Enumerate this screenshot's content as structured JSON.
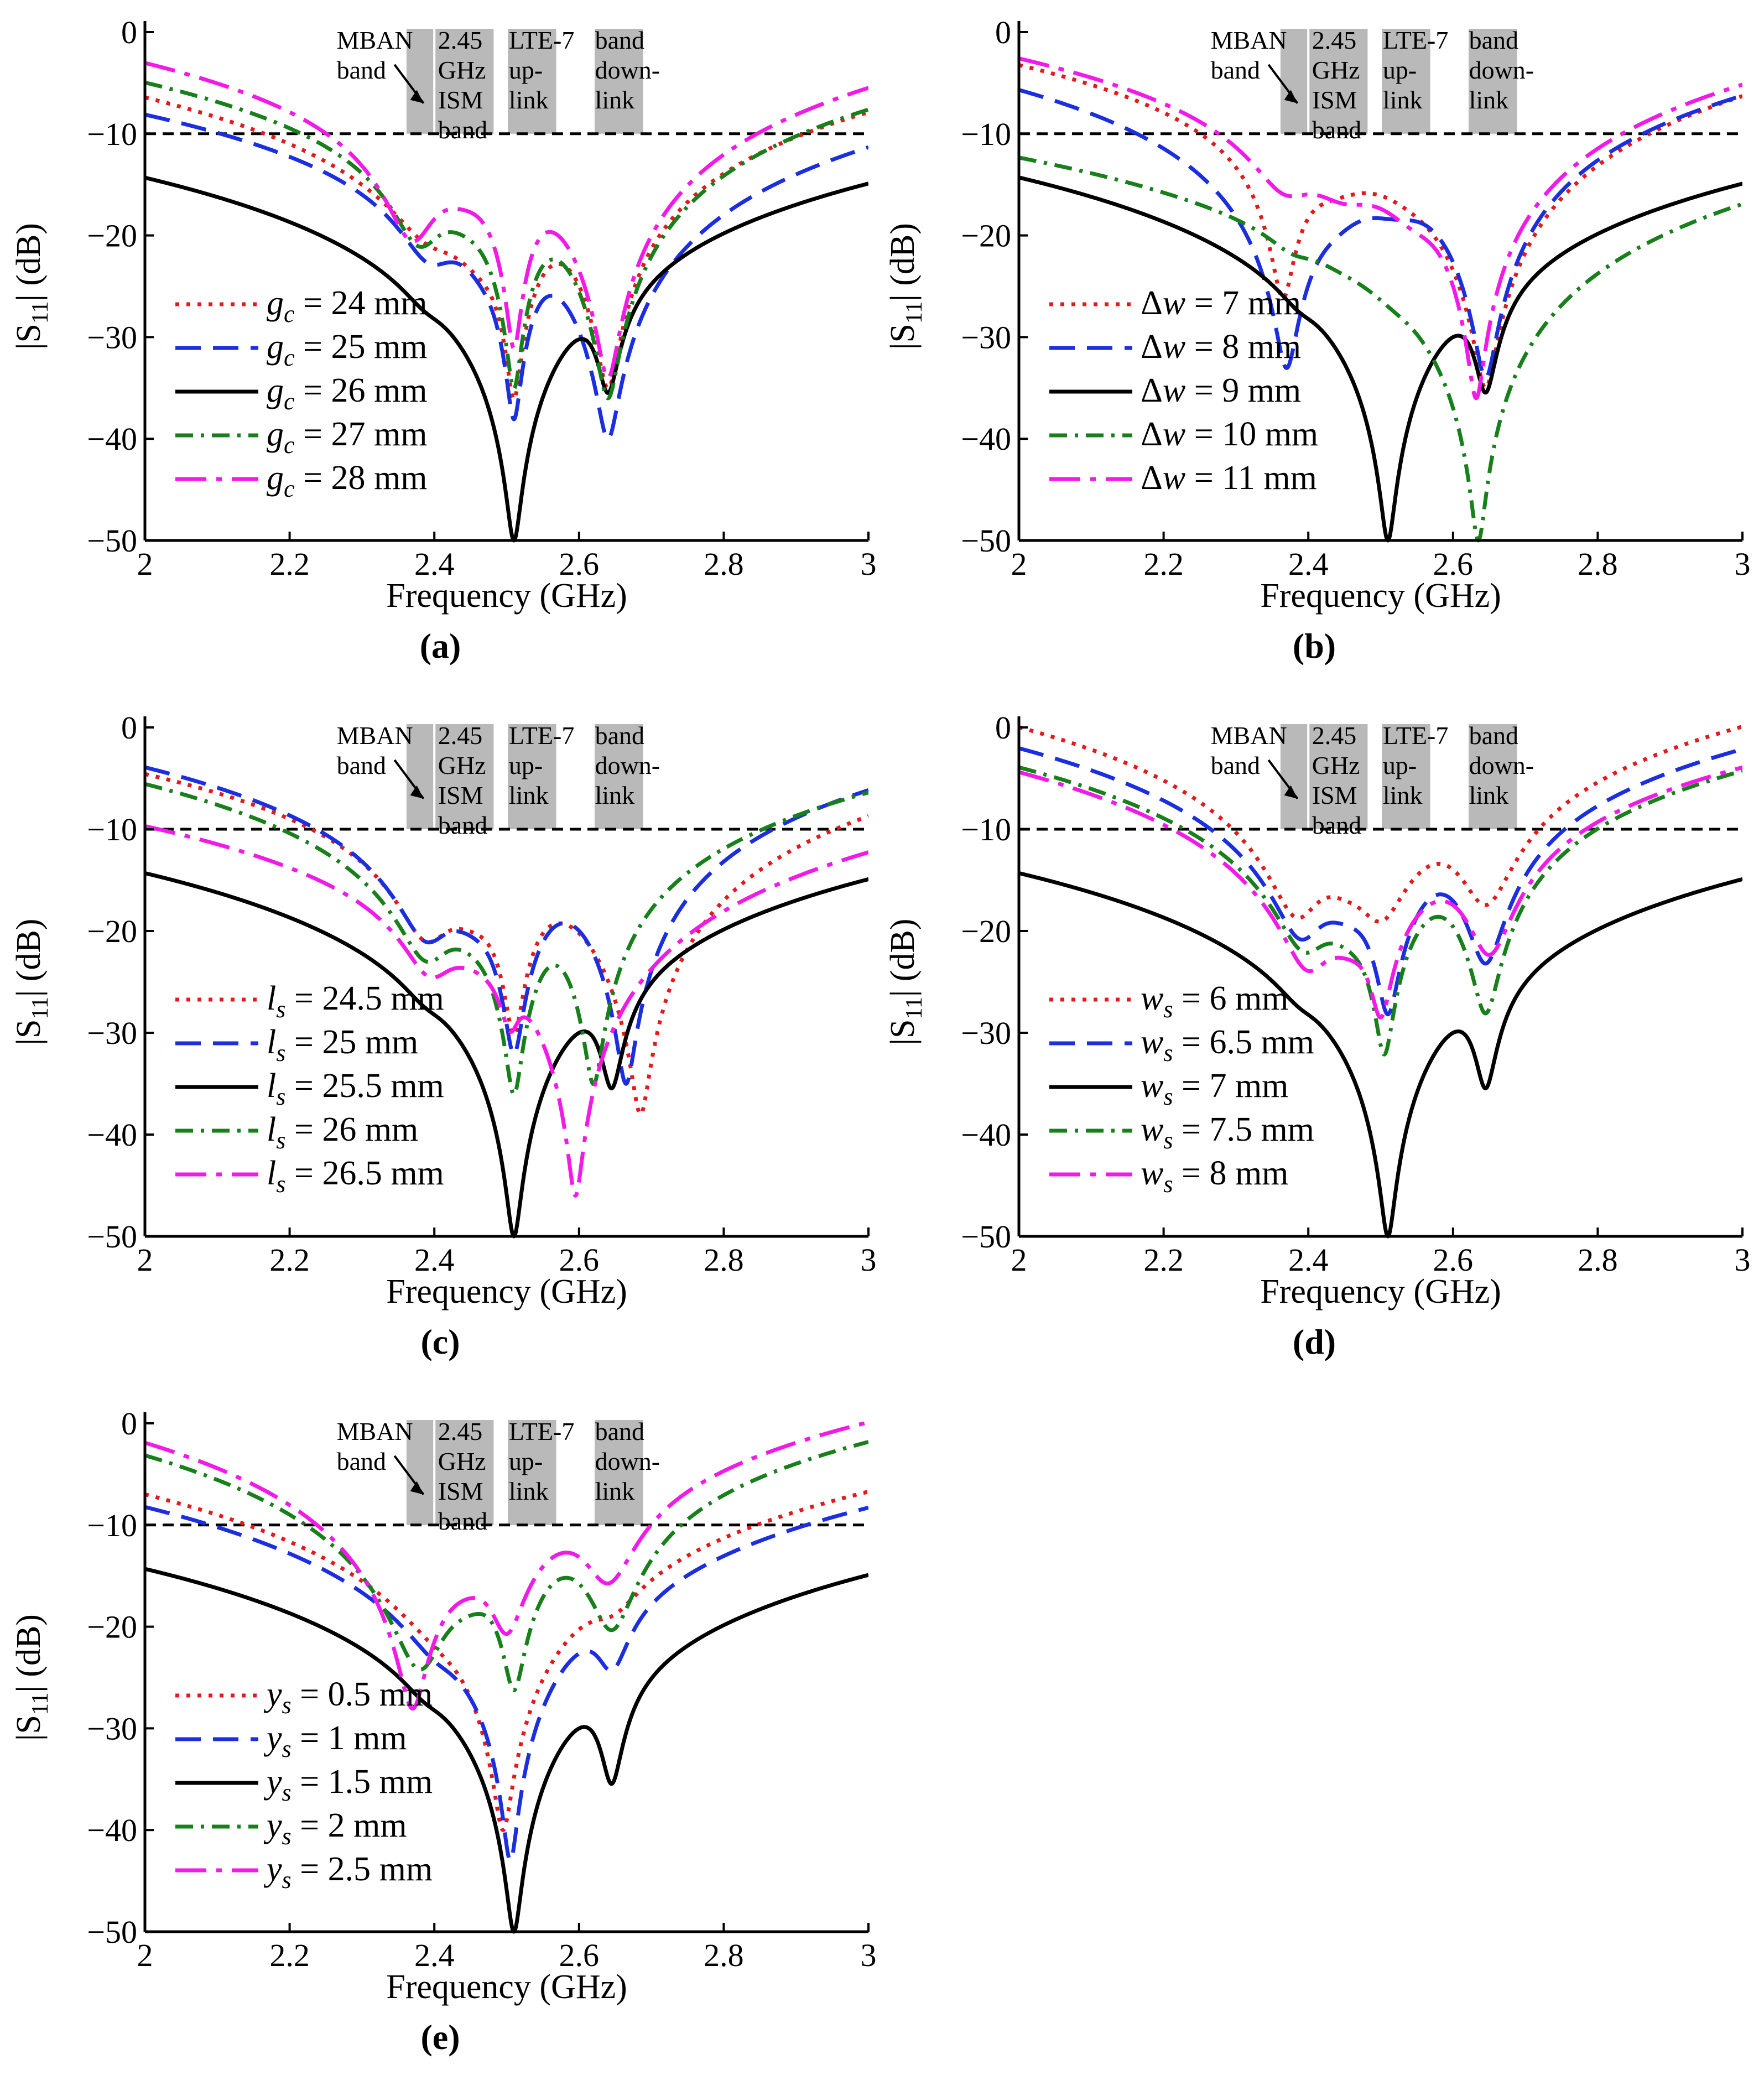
{
  "figure": {
    "y_axis_label": "|S11| (dB)",
    "x_axis_label": "Frequency (GHz)",
    "reference_line_db": -10,
    "series_colors": [
      "#e5191c",
      "#1b2ee0",
      "#000000",
      "#17801a",
      "#f21ae8"
    ],
    "series_styles": [
      "dotted",
      "dashed",
      "solid",
      "dashdot",
      "dashdot-long"
    ]
  },
  "chart_data": [
    {
      "panel": "(a)",
      "type": "line",
      "xlabel": "Frequency (GHz)",
      "ylabel": "|S11| (dB)",
      "xlim": [
        2,
        3
      ],
      "ylim": [
        -50,
        0
      ],
      "xticks": [
        "2",
        "2.2",
        "2.4",
        "2.6",
        "2.8",
        "3"
      ],
      "yticks": [
        "0",
        "−10",
        "−20",
        "−30",
        "−40",
        "−50"
      ],
      "band_labels": [
        "MBAN band",
        "2.45 GHz ISM band",
        "LTE-7 up-link",
        "band down-link"
      ],
      "legend_parameter": "g",
      "legend_subscript": "c",
      "legend_values": [
        "24 mm",
        "25 mm",
        "26 mm",
        "27 mm",
        "28 mm"
      ],
      "series": [
        {
          "name": "g_c = 24 mm",
          "dips": [
            {
              "f": 2.395,
              "d": -18,
              "w": 0.045
            },
            {
              "f": 2.47,
              "d": -21,
              "w": 0.05
            },
            {
              "f": 2.51,
              "d": -36,
              "w": 0.008
            },
            {
              "f": 2.64,
              "d": -35,
              "w": 0.012
            }
          ]
        },
        {
          "name": "g_c = 25 mm",
          "dips": [
            {
              "f": 2.395,
              "d": -21,
              "w": 0.035
            },
            {
              "f": 2.47,
              "d": -18,
              "w": 0.035
            },
            {
              "f": 2.51,
              "d": -38,
              "w": 0.008
            },
            {
              "f": 2.64,
              "d": -40,
              "w": 0.012
            }
          ]
        },
        {
          "name": "g_c = 26 mm",
          "dips": [
            {
              "f": 2.39,
              "d": -21,
              "w": 0.032
            },
            {
              "f": 2.455,
              "d": -16,
              "w": 0.045
            },
            {
              "f": 2.51,
              "d": -50,
              "w": 0.008
            },
            {
              "f": 2.64,
              "d": -35,
              "w": 0.012
            }
          ]
        },
        {
          "name": "g_c = 27 mm",
          "dips": [
            {
              "f": 2.38,
              "d": -20,
              "w": 0.03
            },
            {
              "f": 2.445,
              "d": -14,
              "w": 0.045
            },
            {
              "f": 2.51,
              "d": -35,
              "w": 0.008
            },
            {
              "f": 2.64,
              "d": -36,
              "w": 0.012
            }
          ]
        },
        {
          "name": "g_c = 28 mm",
          "dips": [
            {
              "f": 2.37,
              "d": -20,
              "w": 0.028
            },
            {
              "f": 2.44,
              "d": -12,
              "w": 0.045
            },
            {
              "f": 2.51,
              "d": -31,
              "w": 0.008
            },
            {
              "f": 2.64,
              "d": -34,
              "w": 0.012
            }
          ]
        }
      ]
    },
    {
      "panel": "(b)",
      "type": "line",
      "xlabel": "Frequency (GHz)",
      "ylabel": "|S11| (dB)",
      "xlim": [
        2,
        3
      ],
      "ylim": [
        -50,
        0
      ],
      "xticks": [
        "2",
        "2.2",
        "2.4",
        "2.6",
        "2.8",
        "3"
      ],
      "yticks": [
        "0",
        "−10",
        "−20",
        "−30",
        "−40",
        "−50"
      ],
      "band_labels": [
        "MBAN band",
        "2.45 GHz ISM band",
        "LTE-7 up-link",
        "band down-link"
      ],
      "legend_parameter": "Δw",
      "legend_subscript": "",
      "legend_values": [
        "7 mm",
        "8 mm",
        "9 mm",
        "10 mm",
        "11 mm"
      ],
      "series": [
        {
          "name": "Δw = 7 mm",
          "dips": [
            {
              "f": 2.365,
              "d": -26,
              "w": 0.012
            },
            {
              "f": 2.43,
              "d": -13,
              "w": 0.06
            },
            {
              "f": 2.55,
              "d": -10,
              "w": 0.06
            },
            {
              "f": 2.645,
              "d": -35,
              "w": 0.012
            }
          ]
        },
        {
          "name": "Δw = 8 mm",
          "dips": [
            {
              "f": 2.37,
              "d": -33,
              "w": 0.012
            },
            {
              "f": 2.43,
              "d": -15,
              "w": 0.05
            },
            {
              "f": 2.52,
              "d": -14,
              "w": 0.05
            },
            {
              "f": 2.645,
              "d": -34,
              "w": 0.012
            }
          ]
        },
        {
          "name": "Δw = 9 mm",
          "dips": [
            {
              "f": 2.39,
              "d": -21,
              "w": 0.03
            },
            {
              "f": 2.455,
              "d": -16,
              "w": 0.045
            },
            {
              "f": 2.51,
              "d": -50,
              "w": 0.008
            },
            {
              "f": 2.645,
              "d": -35,
              "w": 0.012
            }
          ]
        },
        {
          "name": "Δw = 10 mm",
          "dips": [
            {
              "f": 2.38,
              "d": -16,
              "w": 0.035
            },
            {
              "f": 2.45,
              "d": -15,
              "w": 0.05
            },
            {
              "f": 2.52,
              "d": -19,
              "w": 0.04
            },
            {
              "f": 2.635,
              "d": -50,
              "w": 0.008
            }
          ]
        },
        {
          "name": "Δw = 11 mm",
          "dips": [
            {
              "f": 2.37,
              "d": -14,
              "w": 0.04
            },
            {
              "f": 2.45,
              "d": -14,
              "w": 0.05
            },
            {
              "f": 2.55,
              "d": -16,
              "w": 0.05
            },
            {
              "f": 2.632,
              "d": -36,
              "w": 0.009
            }
          ]
        }
      ]
    },
    {
      "panel": "(c)",
      "type": "line",
      "xlabel": "Frequency (GHz)",
      "ylabel": "|S11| (dB)",
      "xlim": [
        2,
        3
      ],
      "ylim": [
        -50,
        0
      ],
      "xticks": [
        "2",
        "2.2",
        "2.4",
        "2.6",
        "2.8",
        "3"
      ],
      "yticks": [
        "0",
        "−10",
        "−20",
        "−30",
        "−40",
        "−50"
      ],
      "band_labels": [
        "MBAN band",
        "2.45 GHz ISM band",
        "LTE-7 up-link",
        "band down-link"
      ],
      "legend_parameter": "l",
      "legend_subscript": "s",
      "legend_values": [
        "24.5 mm",
        "25 mm",
        "25.5 mm",
        "26 mm",
        "26.5 mm"
      ],
      "series": [
        {
          "name": "l_s = 24.5 mm",
          "dips": [
            {
              "f": 2.39,
              "d": -20,
              "w": 0.032
            },
            {
              "f": 2.455,
              "d": -16,
              "w": 0.045
            },
            {
              "f": 2.51,
              "d": -30,
              "w": 0.01
            },
            {
              "f": 2.685,
              "d": -38,
              "w": 0.01
            }
          ]
        },
        {
          "name": "l_s = 25 mm",
          "dips": [
            {
              "f": 2.39,
              "d": -20,
              "w": 0.032
            },
            {
              "f": 2.455,
              "d": -16,
              "w": 0.045
            },
            {
              "f": 2.51,
              "d": -32,
              "w": 0.01
            },
            {
              "f": 2.665,
              "d": -35,
              "w": 0.01
            }
          ]
        },
        {
          "name": "l_s = 25.5 mm",
          "dips": [
            {
              "f": 2.39,
              "d": -21,
              "w": 0.032
            },
            {
              "f": 2.455,
              "d": -16,
              "w": 0.045
            },
            {
              "f": 2.51,
              "d": -50,
              "w": 0.008
            },
            {
              "f": 2.645,
              "d": -35,
              "w": 0.012
            }
          ]
        },
        {
          "name": "l_s = 26 mm",
          "dips": [
            {
              "f": 2.39,
              "d": -22,
              "w": 0.032
            },
            {
              "f": 2.455,
              "d": -16,
              "w": 0.045
            },
            {
              "f": 2.51,
              "d": -36,
              "w": 0.009
            },
            {
              "f": 2.62,
              "d": -35,
              "w": 0.01
            }
          ]
        },
        {
          "name": "l_s = 26.5 mm",
          "dips": [
            {
              "f": 2.395,
              "d": -23,
              "w": 0.032
            },
            {
              "f": 2.455,
              "d": -16,
              "w": 0.045
            },
            {
              "f": 2.505,
              "d": -28,
              "w": 0.012
            },
            {
              "f": 2.595,
              "d": -46,
              "w": 0.008
            }
          ]
        }
      ]
    },
    {
      "panel": "(d)",
      "type": "line",
      "xlabel": "Frequency (GHz)",
      "ylabel": "|S11| (dB)",
      "xlim": [
        2,
        3
      ],
      "ylim": [
        -50,
        0
      ],
      "xticks": [
        "2",
        "2.2",
        "2.4",
        "2.6",
        "2.8",
        "3"
      ],
      "yticks": [
        "0",
        "−10",
        "−20",
        "−30",
        "−40",
        "−50"
      ],
      "band_labels": [
        "MBAN band",
        "2.45 GHz ISM band",
        "LTE-7 up-link",
        "band down-link"
      ],
      "legend_parameter": "w",
      "legend_subscript": "s",
      "legend_values": [
        "6 mm",
        "6.5 mm",
        "7 mm",
        "7.5 mm",
        "8 mm"
      ],
      "series": [
        {
          "name": "w_s = 6 mm",
          "dips": [
            {
              "f": 2.385,
              "d": -18,
              "w": 0.03
            },
            {
              "f": 2.455,
              "d": -13,
              "w": 0.045
            },
            {
              "f": 2.5,
              "d": -18,
              "w": 0.03
            },
            {
              "f": 2.645,
              "d": -17,
              "w": 0.03
            }
          ]
        },
        {
          "name": "w_s = 6.5 mm",
          "dips": [
            {
              "f": 2.39,
              "d": -20,
              "w": 0.03
            },
            {
              "f": 2.455,
              "d": -16,
              "w": 0.045
            },
            {
              "f": 2.51,
              "d": -28,
              "w": 0.012
            },
            {
              "f": 2.645,
              "d": -23,
              "w": 0.02
            }
          ]
        },
        {
          "name": "w_s = 7 mm",
          "dips": [
            {
              "f": 2.39,
              "d": -21,
              "w": 0.032
            },
            {
              "f": 2.455,
              "d": -16,
              "w": 0.045
            },
            {
              "f": 2.51,
              "d": -50,
              "w": 0.008
            },
            {
              "f": 2.645,
              "d": -35,
              "w": 0.012
            }
          ]
        },
        {
          "name": "w_s = 7.5 mm",
          "dips": [
            {
              "f": 2.395,
              "d": -21,
              "w": 0.032
            },
            {
              "f": 2.46,
              "d": -18,
              "w": 0.045
            },
            {
              "f": 2.505,
              "d": -32,
              "w": 0.01
            },
            {
              "f": 2.645,
              "d": -28,
              "w": 0.015
            }
          ]
        },
        {
          "name": "w_s = 8 mm",
          "dips": [
            {
              "f": 2.4,
              "d": -23,
              "w": 0.03
            },
            {
              "f": 2.46,
              "d": -20,
              "w": 0.045
            },
            {
              "f": 2.5,
              "d": -28,
              "w": 0.012
            },
            {
              "f": 2.65,
              "d": -22,
              "w": 0.025
            }
          ]
        }
      ]
    },
    {
      "panel": "(e)",
      "type": "line",
      "xlabel": "Frequency (GHz)",
      "ylabel": "|S11| (dB)",
      "xlim": [
        2,
        3
      ],
      "ylim": [
        -50,
        0
      ],
      "xticks": [
        "2",
        "2.2",
        "2.4",
        "2.6",
        "2.8",
        "3"
      ],
      "yticks": [
        "0",
        "−10",
        "−20",
        "−30",
        "−40",
        "−50"
      ],
      "band_labels": [
        "MBAN band",
        "2.45 GHz ISM band",
        "LTE-7 up-link",
        "band down-link"
      ],
      "legend_parameter": "y",
      "legend_subscript": "s",
      "legend_values": [
        "0.5 mm",
        "1 mm",
        "1.5 mm",
        "2 mm",
        "2.5 mm"
      ],
      "series": [
        {
          "name": "y_s = 0.5 mm",
          "dips": [
            {
              "f": 2.41,
              "d": -17,
              "w": 0.05
            },
            {
              "f": 2.495,
              "d": -40,
              "w": 0.01
            },
            {
              "f": 2.645,
              "d": -15,
              "w": 0.035
            }
          ]
        },
        {
          "name": "y_s = 1 mm",
          "dips": [
            {
              "f": 2.405,
              "d": -19,
              "w": 0.04
            },
            {
              "f": 2.46,
              "d": -18,
              "w": 0.045
            },
            {
              "f": 2.505,
              "d": -43,
              "w": 0.008
            },
            {
              "f": 2.645,
              "d": -23,
              "w": 0.02
            }
          ]
        },
        {
          "name": "y_s = 1.5 mm",
          "dips": [
            {
              "f": 2.39,
              "d": -21,
              "w": 0.032
            },
            {
              "f": 2.455,
              "d": -16,
              "w": 0.045
            },
            {
              "f": 2.51,
              "d": -50,
              "w": 0.008
            },
            {
              "f": 2.645,
              "d": -35,
              "w": 0.012
            }
          ]
        },
        {
          "name": "y_s = 2 mm",
          "dips": [
            {
              "f": 2.38,
              "d": -24,
              "w": 0.028
            },
            {
              "f": 2.445,
              "d": -14,
              "w": 0.045
            },
            {
              "f": 2.51,
              "d": -26,
              "w": 0.012
            },
            {
              "f": 2.645,
              "d": -20,
              "w": 0.025
            }
          ]
        },
        {
          "name": "y_s = 2.5 mm",
          "dips": [
            {
              "f": 2.37,
              "d": -28,
              "w": 0.015
            },
            {
              "f": 2.44,
              "d": -12,
              "w": 0.05
            },
            {
              "f": 2.5,
              "d": -20,
              "w": 0.02
            },
            {
              "f": 2.64,
              "d": -15,
              "w": 0.03
            }
          ]
        }
      ]
    }
  ]
}
